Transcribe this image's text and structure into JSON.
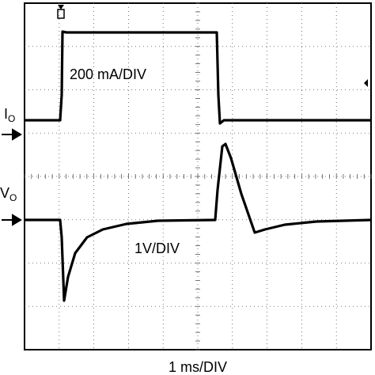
{
  "annotations": {
    "current_scale": "200 mA/DIV",
    "voltage_scale": "1V/DIV",
    "time_scale": "1 ms/DIV"
  },
  "channels": [
    {
      "symbol": "I",
      "subscript": "O"
    },
    {
      "symbol": "V",
      "subscript": "O"
    }
  ]
}
